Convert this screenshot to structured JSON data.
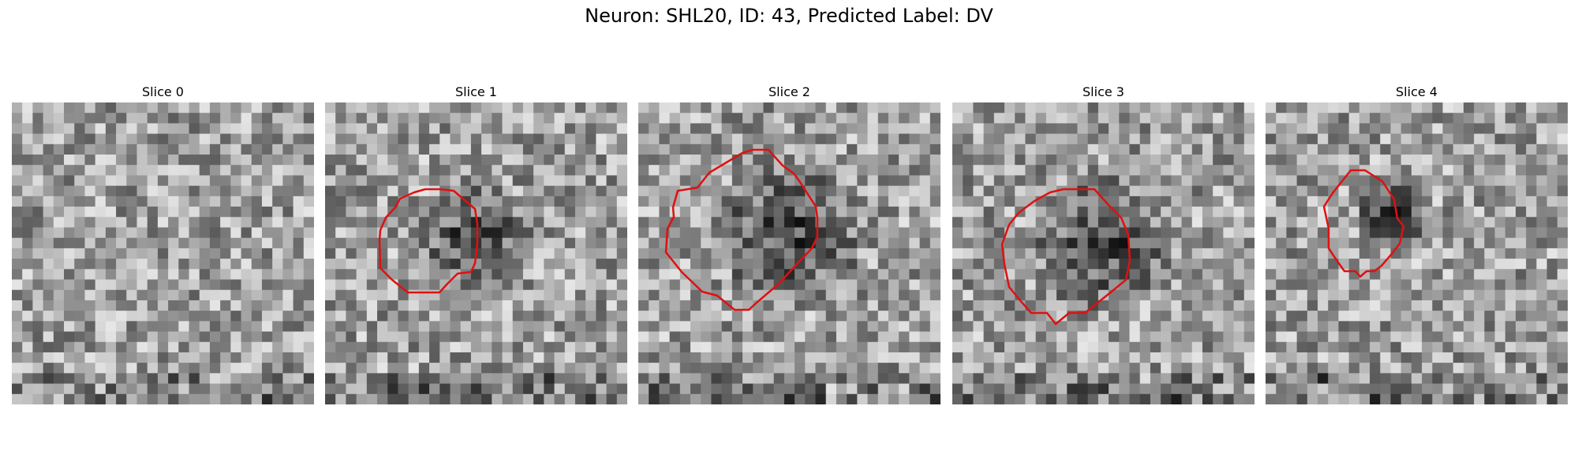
{
  "figure": {
    "title": "Neuron: SHL20, ID: 43, Predicted Label: DV"
  },
  "panels": [
    {
      "title": "Slice 0",
      "has_contour": false
    },
    {
      "title": "Slice 1",
      "has_contour": true
    },
    {
      "title": "Slice 2",
      "has_contour": true
    },
    {
      "title": "Slice 3",
      "has_contour": true
    },
    {
      "title": "Slice 4",
      "has_contour": true
    }
  ],
  "colors": {
    "contour": "#e01010"
  }
}
